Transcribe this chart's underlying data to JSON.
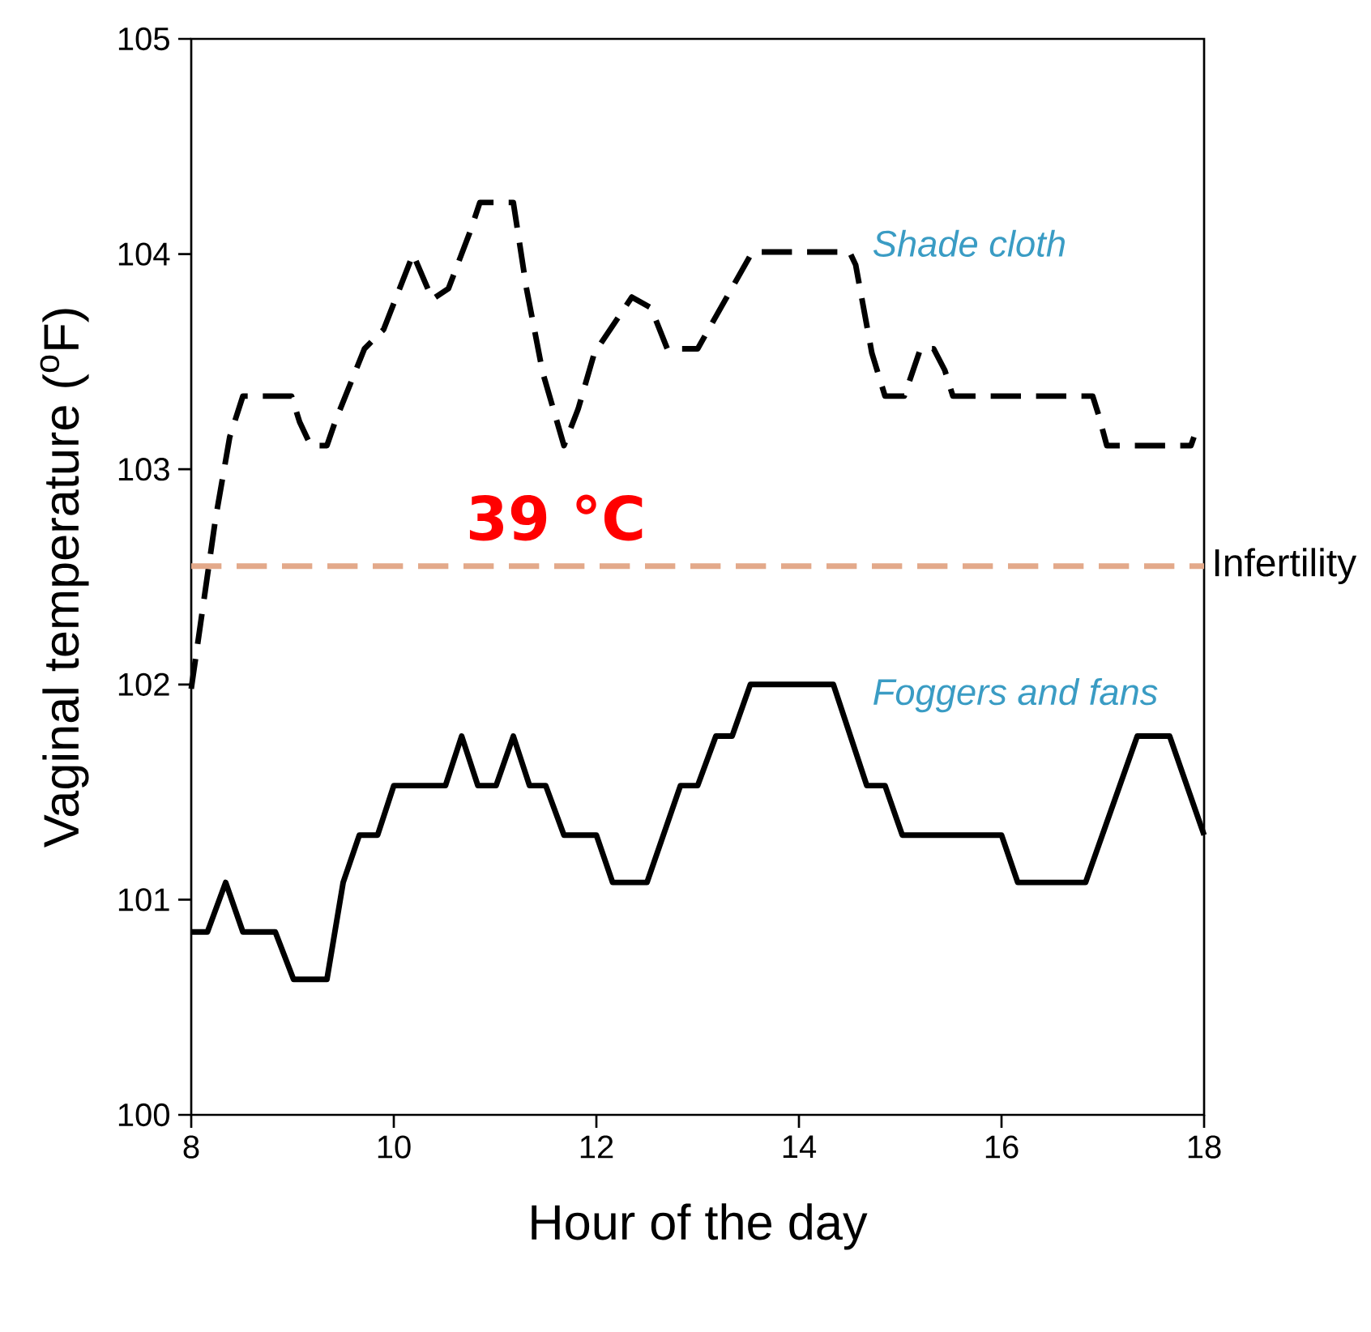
{
  "chart_data": {
    "type": "line",
    "xlabel": "Hour of the day",
    "ylabel": "Vaginal temperature ($^{o}$F)",
    "xlim": [
      8,
      18
    ],
    "xticks": [
      8,
      10,
      12,
      14,
      16,
      18
    ],
    "ylim": [
      100,
      105
    ],
    "yticks": [
      100,
      101,
      102,
      103,
      104,
      105
    ],
    "grid": false,
    "legend": false,
    "marker": "none",
    "series": [
      {
        "name": "Shade cloth",
        "color": "#000000",
        "line_style": "dashed",
        "x": [
          8.0,
          8.24,
          8.38,
          8.51,
          8.99,
          9.07,
          9.18,
          9.34,
          9.42,
          9.71,
          9.9,
          10.19,
          10.38,
          10.54,
          10.75,
          10.85,
          11.18,
          11.31,
          11.47,
          11.68,
          11.82,
          11.98,
          12.35,
          12.54,
          12.7,
          13.0,
          13.54,
          14.5,
          14.56,
          14.72,
          14.85,
          15.04,
          15.2,
          15.33,
          15.44,
          15.52,
          16.9,
          16.96,
          17.04,
          17.87,
          17.9
        ],
        "values": [
          101.98,
          102.77,
          103.15,
          103.34,
          103.34,
          103.22,
          103.11,
          103.11,
          103.22,
          103.56,
          103.65,
          104.0,
          103.79,
          103.84,
          104.1,
          104.24,
          104.24,
          103.84,
          103.45,
          103.11,
          103.28,
          103.54,
          103.8,
          103.75,
          103.56,
          103.56,
          104.01,
          104.01,
          103.95,
          103.54,
          103.34,
          103.34,
          103.56,
          103.56,
          103.46,
          103.34,
          103.34,
          103.25,
          103.11,
          103.11,
          103.15
        ]
      },
      {
        "name": "Foggers and fans",
        "color": "#000000",
        "line_style": "solid",
        "x": [
          8.0,
          8.16,
          8.34,
          8.51,
          8.83,
          9.01,
          9.34,
          9.5,
          9.66,
          9.84,
          10.0,
          10.51,
          10.67,
          10.83,
          11.01,
          11.18,
          11.34,
          11.5,
          11.68,
          12.0,
          12.16,
          12.5,
          12.83,
          13.0,
          13.18,
          13.34,
          13.52,
          14.34,
          14.67,
          14.85,
          15.02,
          16.0,
          16.16,
          16.83,
          17.34,
          17.66,
          18.0
        ],
        "values": [
          100.85,
          100.85,
          101.08,
          100.85,
          100.85,
          100.63,
          100.63,
          101.08,
          101.3,
          101.3,
          101.53,
          101.53,
          101.76,
          101.53,
          101.53,
          101.76,
          101.53,
          101.53,
          101.3,
          101.3,
          101.08,
          101.08,
          101.53,
          101.53,
          101.76,
          101.76,
          102.0,
          102.0,
          101.53,
          101.53,
          101.3,
          101.3,
          101.08,
          101.08,
          101.76,
          101.76,
          101.3
        ]
      }
    ],
    "ref_lines": [
      {
        "axis": "y",
        "value": 102.55,
        "label": "Infertility",
        "color": "#e3a98a",
        "line_style": "dashed"
      }
    ],
    "annotations": [
      "39 °C"
    ]
  }
}
